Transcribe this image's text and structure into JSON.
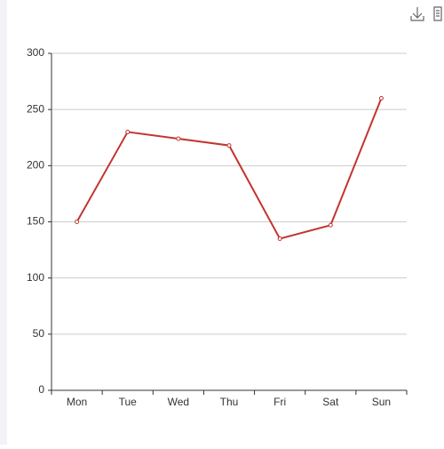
{
  "chart_data": {
    "type": "line",
    "categories": [
      "Mon",
      "Tue",
      "Wed",
      "Thu",
      "Fri",
      "Sat",
      "Sun"
    ],
    "values": [
      150,
      230,
      224,
      218,
      135,
      147,
      260
    ],
    "color": "#c23531",
    "ylim": [
      0,
      300
    ],
    "yticks": [
      0,
      50,
      100,
      150,
      200,
      250,
      300
    ],
    "grid": true
  }
}
